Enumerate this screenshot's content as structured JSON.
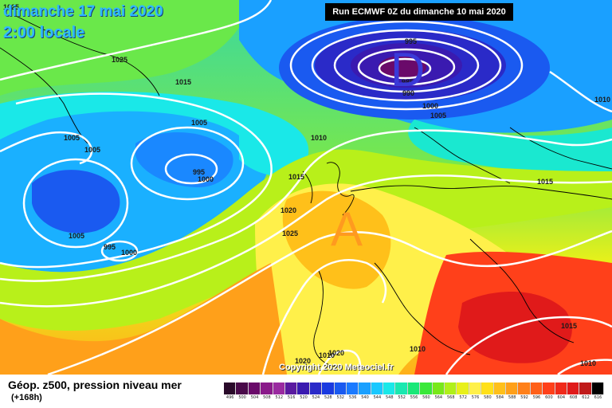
{
  "header": {
    "date": "dimanche 17 mai 2020",
    "time": "2:00 locale",
    "run": "Run ECMWF 0Z du dimanche 10 mai 2020"
  },
  "map": {
    "high_letter": "A",
    "low_letter": "D",
    "high_color": "#ff9a1f",
    "low_color": "#3a3ad8",
    "isobar_labels": [
      {
        "id": "l1",
        "text": "1025"
      },
      {
        "id": "l2",
        "text": "1015"
      },
      {
        "id": "l3",
        "text": "1005"
      },
      {
        "id": "l4",
        "text": "1005"
      },
      {
        "id": "l5",
        "text": "1005"
      },
      {
        "id": "l6",
        "text": "995"
      },
      {
        "id": "l7",
        "text": "1000"
      },
      {
        "id": "l8",
        "text": "1005"
      },
      {
        "id": "l9",
        "text": "995"
      },
      {
        "id": "l10",
        "text": "1000"
      },
      {
        "id": "l11",
        "text": "1010"
      },
      {
        "id": "l12",
        "text": "1015"
      },
      {
        "id": "l13",
        "text": "1020"
      },
      {
        "id": "l14",
        "text": "1025"
      },
      {
        "id": "l15",
        "text": "995"
      },
      {
        "id": "l16",
        "text": "985"
      },
      {
        "id": "l17",
        "text": "990"
      },
      {
        "id": "l18",
        "text": "1000"
      },
      {
        "id": "l19",
        "text": "1005"
      },
      {
        "id": "l20",
        "text": "1010"
      },
      {
        "id": "l21",
        "text": "1015"
      },
      {
        "id": "l22",
        "text": "1010"
      },
      {
        "id": "l23",
        "text": "1015"
      },
      {
        "id": "l24",
        "text": "1010"
      },
      {
        "id": "l25",
        "text": "1020"
      },
      {
        "id": "l26",
        "text": "1020"
      },
      {
        "id": "l27",
        "text": "1010"
      },
      {
        "id": "l28",
        "text": "1025"
      }
    ],
    "copyright": "Copyright 2020 Meteociel.fr"
  },
  "footer": {
    "title": "Géop. z500, pression niveau mer",
    "subtitle": "(+168h)"
  },
  "legend": {
    "levels": [
      "496",
      "500",
      "504",
      "508",
      "512",
      "516",
      "520",
      "524",
      "528",
      "532",
      "536",
      "540",
      "544",
      "548",
      "552",
      "556",
      "560",
      "564",
      "568",
      "572",
      "576",
      "580",
      "584",
      "588",
      "592",
      "596",
      "600",
      "604",
      "608",
      "612",
      "616"
    ],
    "colors": [
      "#2a0a2a",
      "#4a0a4a",
      "#6a0a6a",
      "#8a1a8a",
      "#9a2aa0",
      "#5a1aa0",
      "#3a1ab0",
      "#2a2ac8",
      "#1a3ae0",
      "#1a5af0",
      "#1a7aff",
      "#1aa0ff",
      "#1ac8ff",
      "#1ae8e8",
      "#1ae8b0",
      "#1ae878",
      "#3ae83a",
      "#78e81a",
      "#b0f01a",
      "#e8f01a",
      "#fff04a",
      "#ffe01a",
      "#ffc01a",
      "#ffa01a",
      "#ff801a",
      "#ff601a",
      "#ff401a",
      "#f02a1a",
      "#e01a1a",
      "#c01a1a",
      "#000000"
    ]
  }
}
